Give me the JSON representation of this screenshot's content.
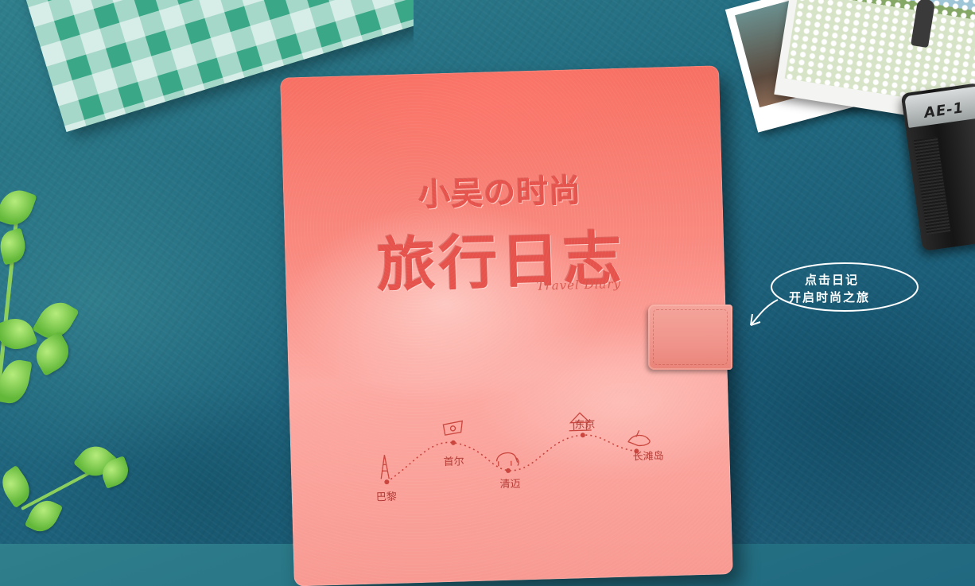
{
  "cover": {
    "title_small": "小吴の时尚",
    "title_big": "旅行日志",
    "subtitle": "Travel Diary"
  },
  "route": {
    "stops": [
      {
        "name": "巴黎",
        "icon": "eiffel-tower-icon"
      },
      {
        "name": "首尔",
        "icon": "flag-icon"
      },
      {
        "name": "清迈",
        "icon": "elephant-icon"
      },
      {
        "name": "东京",
        "icon": "temple-icon"
      },
      {
        "name": "长滩岛",
        "icon": "island-icon"
      }
    ]
  },
  "callout": {
    "line1": "点击日记",
    "line2": "开启时尚之旅"
  },
  "camera": {
    "label": "AE-1"
  },
  "colors": {
    "background": "#216a80",
    "cover": "#f77063",
    "emboss": "#e6534c",
    "cloth": "#3aa887"
  }
}
